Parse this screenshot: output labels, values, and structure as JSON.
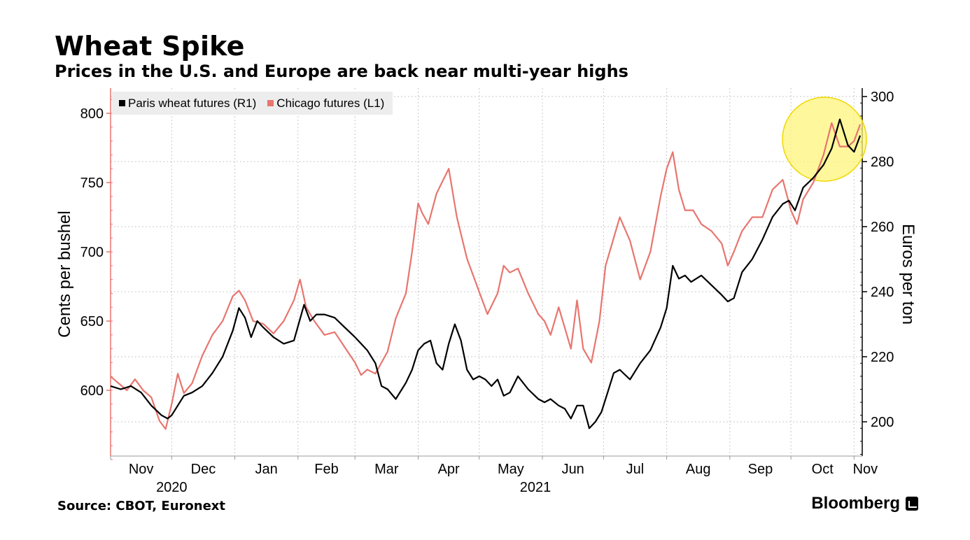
{
  "title": "Wheat Spike",
  "subtitle": "Prices in the U.S. and Europe are back near multi-year highs",
  "source": "Source: CBOT, Euronext",
  "brand": "Bloomberg",
  "colors": {
    "paris": "#000000",
    "chicago": "#e8756f",
    "highlight": "#fff47a",
    "grid": "#c8c8c8"
  },
  "chart_data": {
    "type": "line",
    "legend": [
      {
        "name": "Paris wheat futures (R1)",
        "color": "#000000"
      },
      {
        "name": "Chicago futures (L1)",
        "color": "#e8756f"
      }
    ],
    "ylabel_left": "Cents per bushel",
    "ylabel_right": "Euros per ton",
    "yticks_left": [
      "600",
      "650",
      "700",
      "750",
      "800"
    ],
    "yticks_right": [
      "200",
      "220",
      "240",
      "260",
      "280",
      "300"
    ],
    "ylim_left": [
      550,
      815
    ],
    "ylim_right": [
      190,
      300
    ],
    "x_months": [
      "Nov",
      "Dec",
      "Jan",
      "Feb",
      "Mar",
      "Apr",
      "May",
      "Jun",
      "Jul",
      "Aug",
      "Sep",
      "Oct",
      "Nov"
    ],
    "x_years": [
      "2020",
      "2021"
    ],
    "x_range_days": [
      0,
      369
    ],
    "month_starts_days": [
      0,
      30,
      61,
      92,
      120,
      151,
      181,
      212,
      242,
      273,
      304,
      334,
      365
    ],
    "series": [
      {
        "name": "Paris wheat futures (R1)",
        "axis": "right",
        "days": [
          0,
          5,
          10,
          15,
          20,
          25,
          28,
          30,
          33,
          36,
          40,
          45,
          50,
          55,
          60,
          63,
          66,
          69,
          72,
          75,
          80,
          85,
          90,
          95,
          98,
          101,
          105,
          110,
          115,
          120,
          123,
          126,
          130,
          133,
          136,
          140,
          145,
          148,
          151,
          154,
          157,
          160,
          163,
          166,
          169,
          172,
          175,
          178,
          181,
          184,
          187,
          190,
          193,
          196,
          200,
          205,
          210,
          213,
          216,
          220,
          223,
          226,
          229,
          232,
          235,
          238,
          241,
          244,
          247,
          250,
          255,
          260,
          265,
          270,
          273,
          276,
          279,
          282,
          285,
          290,
          295,
          300,
          303,
          306,
          310,
          315,
          320,
          325,
          330,
          333,
          336,
          340,
          345,
          350,
          354,
          358,
          362,
          365,
          368
        ],
        "values": [
          211,
          210,
          211,
          209,
          205,
          202,
          201,
          202,
          205,
          208,
          209,
          211,
          215,
          220,
          228,
          235,
          232,
          226,
          231,
          229,
          226,
          224,
          225,
          236,
          231,
          233,
          233,
          232,
          229,
          226,
          224,
          222,
          218,
          211,
          210,
          207,
          212,
          216,
          222,
          224,
          225,
          218,
          216,
          224,
          230,
          225,
          216,
          213,
          214,
          213,
          211,
          213,
          208,
          209,
          214,
          210,
          207,
          206,
          207,
          205,
          204,
          201,
          205,
          205,
          198,
          200,
          203,
          209,
          215,
          216,
          213,
          218,
          222,
          229,
          235,
          248,
          244,
          245,
          243,
          245,
          242,
          239,
          237,
          238,
          246,
          250,
          256,
          263,
          267,
          268,
          265,
          272,
          275,
          279,
          284,
          293,
          285,
          283,
          288
        ]
      },
      {
        "name": "Chicago futures (L1)",
        "axis": "left",
        "days": [
          0,
          4,
          8,
          12,
          16,
          20,
          24,
          27,
          30,
          33,
          36,
          40,
          45,
          50,
          55,
          60,
          63,
          66,
          70,
          75,
          80,
          85,
          90,
          93,
          96,
          100,
          105,
          110,
          115,
          120,
          123,
          126,
          130,
          133,
          136,
          140,
          145,
          148,
          151,
          153,
          156,
          160,
          163,
          166,
          170,
          175,
          180,
          185,
          190,
          193,
          196,
          200,
          205,
          210,
          213,
          216,
          220,
          223,
          226,
          229,
          232,
          236,
          240,
          243,
          247,
          250,
          255,
          260,
          265,
          270,
          273,
          276,
          279,
          282,
          286,
          290,
          295,
          300,
          303,
          306,
          310,
          315,
          320,
          325,
          330,
          334,
          337,
          340,
          345,
          350,
          354,
          358,
          362,
          365,
          368
        ],
        "values": [
          610,
          605,
          600,
          608,
          600,
          595,
          578,
          572,
          590,
          612,
          598,
          605,
          625,
          640,
          650,
          668,
          672,
          665,
          650,
          648,
          641,
          650,
          665,
          680,
          660,
          650,
          640,
          642,
          631,
          620,
          611,
          615,
          612,
          620,
          628,
          652,
          670,
          700,
          735,
          728,
          720,
          742,
          751,
          760,
          725,
          695,
          675,
          655,
          670,
          690,
          685,
          688,
          670,
          655,
          650,
          640,
          660,
          645,
          630,
          665,
          630,
          620,
          650,
          690,
          710,
          725,
          708,
          680,
          700,
          740,
          760,
          772,
          745,
          730,
          730,
          720,
          715,
          706,
          690,
          700,
          715,
          725,
          725,
          745,
          752,
          730,
          720,
          738,
          750,
          770,
          793,
          776,
          776,
          780,
          792
        ]
      }
    ],
    "annotation": "highlight circle around latest Oct–Nov peak"
  }
}
